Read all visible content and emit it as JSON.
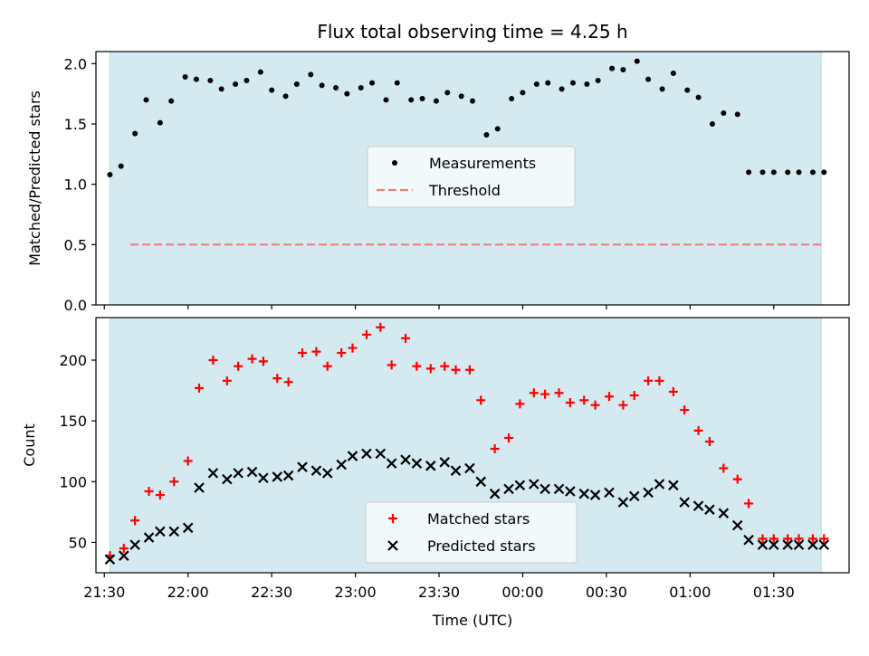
{
  "chart_data": [
    {
      "type": "scatter",
      "title": "Flux total observing time = 4.25 h",
      "ylabel": "Matched/Predicted stars",
      "xlabel": "",
      "xlim": [
        "21:27",
        "01:57"
      ],
      "ylim": [
        0,
        2.1
      ],
      "yticks": [
        "0.0",
        "0.5",
        "1.0",
        "1.5",
        "2.0"
      ],
      "x_tick_labels_shown": false,
      "grid": false,
      "shaded_span": {
        "from": "21:32",
        "to": "01:47",
        "color": "#d4eaf0"
      },
      "legend": {
        "placement": "center",
        "entries": [
          "Measurements",
          "Threshold"
        ]
      },
      "threshold": {
        "name": "Threshold",
        "value": 0.5,
        "color": "#f08080",
        "style": "dashed"
      },
      "series": [
        {
          "name": "Measurements",
          "color": "#000000",
          "x": [
            "21:32",
            "21:36",
            "21:41",
            "21:45",
            "21:50",
            "21:54",
            "21:59",
            "22:03",
            "22:08",
            "22:12",
            "22:17",
            "22:21",
            "22:26",
            "22:30",
            "22:35",
            "22:39",
            "22:44",
            "22:48",
            "22:53",
            "22:57",
            "23:02",
            "23:06",
            "23:11",
            "23:15",
            "23:20",
            "23:24",
            "23:29",
            "23:33",
            "23:38",
            "23:42",
            "23:47",
            "23:51",
            "23:56",
            "00:00",
            "00:05",
            "00:09",
            "00:14",
            "00:18",
            "00:23",
            "00:27",
            "00:32",
            "00:36",
            "00:41",
            "00:45",
            "00:50",
            "00:54",
            "00:59",
            "01:03",
            "01:08",
            "01:12",
            "01:17",
            "01:21",
            "01:26",
            "01:30",
            "01:35",
            "01:39",
            "01:44",
            "01:48"
          ],
          "y": [
            1.08,
            1.15,
            1.42,
            1.7,
            1.51,
            1.69,
            1.89,
            1.87,
            1.86,
            1.79,
            1.83,
            1.86,
            1.93,
            1.78,
            1.73,
            1.83,
            1.91,
            1.82,
            1.8,
            1.75,
            1.8,
            1.84,
            1.7,
            1.84,
            1.7,
            1.71,
            1.69,
            1.76,
            1.73,
            1.69,
            1.41,
            1.46,
            1.71,
            1.76,
            1.83,
            1.84,
            1.79,
            1.84,
            1.83,
            1.86,
            1.96,
            1.95,
            2.02,
            1.87,
            1.79,
            1.92,
            1.78,
            1.72,
            1.5,
            1.59,
            1.58,
            1.1,
            1.1,
            1.1,
            1.1,
            1.1,
            1.1,
            1.1
          ]
        }
      ]
    },
    {
      "type": "scatter",
      "title": "",
      "ylabel": "Count",
      "xlabel": "Time (UTC)",
      "xlim": [
        "21:27",
        "01:57"
      ],
      "ylim": [
        25,
        235
      ],
      "yticks": [
        "50",
        "100",
        "150",
        "200"
      ],
      "xticks": [
        "21:30",
        "22:00",
        "22:30",
        "23:00",
        "23:30",
        "00:00",
        "00:30",
        "01:00",
        "01:30"
      ],
      "grid": false,
      "shaded_span": {
        "from": "21:32",
        "to": "01:47",
        "color": "#d4eaf0"
      },
      "legend": {
        "placement": "bottom-center",
        "entries": [
          "Matched stars",
          "Predicted stars"
        ]
      },
      "series": [
        {
          "name": "Matched stars",
          "marker": "+",
          "color": "#ff0000",
          "x": [
            "21:32",
            "21:37",
            "21:41",
            "21:46",
            "21:50",
            "21:55",
            "22:00",
            "22:04",
            "22:09",
            "22:14",
            "22:18",
            "22:23",
            "22:27",
            "22:32",
            "22:36",
            "22:41",
            "22:46",
            "22:50",
            "22:55",
            "22:59",
            "23:04",
            "23:09",
            "23:13",
            "23:18",
            "23:22",
            "23:27",
            "23:32",
            "23:36",
            "23:41",
            "23:45",
            "23:50",
            "23:55",
            "23:59",
            "00:04",
            "00:08",
            "00:13",
            "00:17",
            "00:22",
            "00:26",
            "00:31",
            "00:36",
            "00:40",
            "00:45",
            "00:49",
            "00:54",
            "00:58",
            "01:03",
            "01:07",
            "01:12",
            "01:17",
            "01:21",
            "01:26",
            "01:30",
            "01:35",
            "01:39",
            "01:44",
            "01:48"
          ],
          "y": [
            39,
            45,
            68,
            92,
            89,
            100,
            117,
            177,
            200,
            183,
            195,
            201,
            199,
            185,
            182,
            206,
            207,
            195,
            206,
            210,
            221,
            227,
            196,
            218,
            195,
            193,
            195,
            192,
            192,
            167,
            127,
            136,
            164,
            173,
            172,
            173,
            165,
            167,
            163,
            170,
            163,
            171,
            183,
            183,
            174,
            159,
            142,
            133,
            111,
            102,
            82,
            53,
            53,
            53,
            53,
            53,
            53
          ]
        },
        {
          "name": "Predicted stars",
          "marker": "x",
          "color": "#000000",
          "x": [
            "21:32",
            "21:37",
            "21:41",
            "21:46",
            "21:50",
            "21:55",
            "22:00",
            "22:04",
            "22:09",
            "22:14",
            "22:18",
            "22:23",
            "22:27",
            "22:32",
            "22:36",
            "22:41",
            "22:46",
            "22:50",
            "22:55",
            "22:59",
            "23:04",
            "23:09",
            "23:13",
            "23:18",
            "23:22",
            "23:27",
            "23:32",
            "23:36",
            "23:41",
            "23:45",
            "23:50",
            "23:55",
            "23:59",
            "00:04",
            "00:08",
            "00:13",
            "00:17",
            "00:22",
            "00:26",
            "00:31",
            "00:36",
            "00:40",
            "00:45",
            "00:49",
            "00:54",
            "00:58",
            "01:03",
            "01:07",
            "01:12",
            "01:17",
            "01:21",
            "01:26",
            "01:30",
            "01:35",
            "01:39",
            "01:44",
            "01:48"
          ],
          "y": [
            36,
            39,
            48,
            54,
            59,
            59,
            62,
            95,
            107,
            102,
            107,
            108,
            103,
            104,
            105,
            112,
            109,
            107,
            114,
            121,
            123,
            123,
            115,
            118,
            115,
            113,
            116,
            109,
            111,
            100,
            90,
            94,
            97,
            98,
            94,
            94,
            92,
            90,
            89,
            91,
            83,
            88,
            91,
            98,
            97,
            83,
            80,
            77,
            74,
            64,
            52,
            48,
            48,
            48,
            48,
            48,
            48
          ]
        }
      ]
    }
  ]
}
